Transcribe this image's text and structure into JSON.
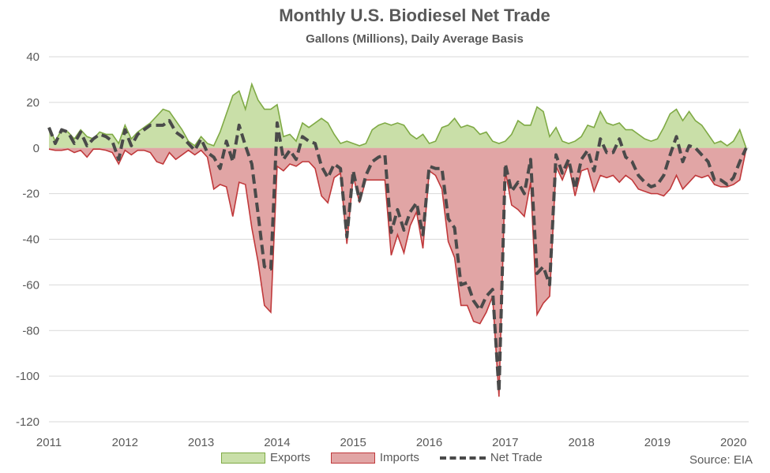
{
  "chart_data": {
    "type": "area",
    "title": "Monthly U.S. Biodiesel Net Trade",
    "subtitle": "Gallons (Millions), Daily Average Basis",
    "xlabel": "",
    "ylabel": "",
    "ylim": [
      -120,
      40
    ],
    "yticks": [
      40,
      20,
      0,
      -20,
      -40,
      -60,
      -80,
      -100,
      -120
    ],
    "xlim": [
      2011,
      2020.2
    ],
    "xticks": [
      "2011",
      "2012",
      "2013",
      "2014",
      "2015",
      "2016",
      "2017",
      "2018",
      "2019",
      "2020"
    ],
    "grid": "horizontal",
    "legend": "bottom",
    "source": "Source: EIA",
    "colors": {
      "exports_fill": "#c9dfa8",
      "exports_line": "#7faa45",
      "imports_fill": "#e1a5a5",
      "imports_line": "#c0393b",
      "net_line": "#4a4a4a",
      "grid": "#d9d9d9"
    },
    "series": [
      {
        "name": "Exports",
        "style": "area",
        "x": [
          2011.0,
          2011.083,
          2011.167,
          2011.25,
          2011.333,
          2011.417,
          2011.5,
          2011.583,
          2011.667,
          2011.75,
          2011.833,
          2011.917,
          2012.0,
          2012.083,
          2012.167,
          2012.25,
          2012.333,
          2012.417,
          2012.5,
          2012.583,
          2012.667,
          2012.75,
          2012.833,
          2012.917,
          2013.0,
          2013.083,
          2013.167,
          2013.25,
          2013.333,
          2013.417,
          2013.5,
          2013.583,
          2013.667,
          2013.75,
          2013.833,
          2013.917,
          2014.0,
          2014.083,
          2014.167,
          2014.25,
          2014.333,
          2014.417,
          2014.5,
          2014.583,
          2014.667,
          2014.75,
          2014.833,
          2014.917,
          2015.0,
          2015.083,
          2015.167,
          2015.25,
          2015.333,
          2015.417,
          2015.5,
          2015.583,
          2015.667,
          2015.75,
          2015.833,
          2015.917,
          2016.0,
          2016.083,
          2016.167,
          2016.25,
          2016.333,
          2016.417,
          2016.5,
          2016.583,
          2016.667,
          2016.75,
          2016.833,
          2016.917,
          2017.0,
          2017.083,
          2017.167,
          2017.25,
          2017.333,
          2017.417,
          2017.5,
          2017.583,
          2017.667,
          2017.75,
          2017.833,
          2017.917,
          2018.0,
          2018.083,
          2018.167,
          2018.25,
          2018.333,
          2018.417,
          2018.5,
          2018.583,
          2018.667,
          2018.75,
          2018.833,
          2018.917,
          2019.0,
          2019.083,
          2019.167,
          2019.25,
          2019.333,
          2019.417,
          2019.5,
          2019.583,
          2019.667,
          2019.75,
          2019.833,
          2019.917,
          2020.0,
          2020.083,
          2020.167
        ],
        "values": [
          9,
          3,
          8,
          7,
          4,
          8,
          5,
          4,
          7,
          6,
          6,
          2,
          10,
          4,
          7,
          9,
          11,
          14,
          17,
          16,
          12,
          8,
          3,
          1,
          5,
          2,
          1,
          7,
          15,
          23,
          25,
          17,
          28,
          21,
          17,
          17,
          19,
          5,
          6,
          3,
          11,
          9,
          11,
          13,
          11,
          6,
          2,
          3,
          2,
          1,
          2,
          8,
          10,
          11,
          10,
          11,
          10,
          6,
          4,
          6,
          2,
          3,
          9,
          10,
          13,
          9,
          10,
          9,
          6,
          7,
          3,
          2,
          3,
          6,
          12,
          10,
          10,
          18,
          16,
          5,
          9,
          3,
          2,
          3,
          5,
          10,
          9,
          16,
          11,
          10,
          11,
          8,
          8,
          6,
          4,
          3,
          4,
          9,
          15,
          17,
          12,
          16,
          12,
          10,
          6,
          2,
          3,
          1,
          3,
          8,
          0
        ]
      },
      {
        "name": "Imports",
        "style": "area",
        "x": [
          2011.0,
          2011.083,
          2011.167,
          2011.25,
          2011.333,
          2011.417,
          2011.5,
          2011.583,
          2011.667,
          2011.75,
          2011.833,
          2011.917,
          2012.0,
          2012.083,
          2012.167,
          2012.25,
          2012.333,
          2012.417,
          2012.5,
          2012.583,
          2012.667,
          2012.75,
          2012.833,
          2012.917,
          2013.0,
          2013.083,
          2013.167,
          2013.25,
          2013.333,
          2013.417,
          2013.5,
          2013.583,
          2013.667,
          2013.75,
          2013.833,
          2013.917,
          2014.0,
          2014.083,
          2014.167,
          2014.25,
          2014.333,
          2014.417,
          2014.5,
          2014.583,
          2014.667,
          2014.75,
          2014.833,
          2014.917,
          2015.0,
          2015.083,
          2015.167,
          2015.25,
          2015.333,
          2015.417,
          2015.5,
          2015.583,
          2015.667,
          2015.75,
          2015.833,
          2015.917,
          2016.0,
          2016.083,
          2016.167,
          2016.25,
          2016.333,
          2016.417,
          2016.5,
          2016.583,
          2016.667,
          2016.75,
          2016.833,
          2016.917,
          2017.0,
          2017.083,
          2017.167,
          2017.25,
          2017.333,
          2017.417,
          2017.5,
          2017.583,
          2017.667,
          2017.75,
          2017.833,
          2017.917,
          2018.0,
          2018.083,
          2018.167,
          2018.25,
          2018.333,
          2018.417,
          2018.5,
          2018.583,
          2018.667,
          2018.75,
          2018.833,
          2018.917,
          2019.0,
          2019.083,
          2019.167,
          2019.25,
          2019.333,
          2019.417,
          2019.5,
          2019.583,
          2019.667,
          2019.75,
          2019.833,
          2019.917,
          2020.0,
          2020.083,
          2020.167
        ],
        "values": [
          -0.5,
          -1,
          -1,
          -0.5,
          -2,
          -1,
          -4,
          -0.5,
          -0.5,
          -1,
          -2,
          -7,
          -1,
          -3,
          -1,
          -1,
          -2,
          -6,
          -7,
          -2,
          -5,
          -3,
          -1,
          -3,
          -1,
          -4,
          -18,
          -16,
          -17,
          -30,
          -15,
          -16,
          -35,
          -50,
          -69,
          -72,
          -8,
          -10,
          -7,
          -8,
          -6,
          -6,
          -9,
          -21,
          -24,
          -13,
          -11,
          -42,
          -12,
          -24,
          -14,
          -14,
          -14,
          -14,
          -47,
          -38,
          -46,
          -34,
          -28,
          -44,
          -10,
          -12,
          -18,
          -41,
          -48,
          -69,
          -69,
          -76,
          -77,
          -72,
          -65,
          -109,
          -10,
          -25,
          -27,
          -30,
          -15,
          -73,
          -68,
          -65,
          -8,
          -14,
          -7,
          -21,
          -10,
          -9,
          -19,
          -12,
          -13,
          -12,
          -15,
          -12,
          -14,
          -18,
          -19,
          -20,
          -20,
          -21,
          -18,
          -12,
          -18,
          -15,
          -12,
          -13,
          -12,
          -16,
          -17,
          -17,
          -16,
          -14,
          -0.5
        ]
      },
      {
        "name": "Net Trade",
        "style": "dashed-line",
        "x": [
          2011.0,
          2011.083,
          2011.167,
          2011.25,
          2011.333,
          2011.417,
          2011.5,
          2011.583,
          2011.667,
          2011.75,
          2011.833,
          2011.917,
          2012.0,
          2012.083,
          2012.167,
          2012.25,
          2012.333,
          2012.417,
          2012.5,
          2012.583,
          2012.667,
          2012.75,
          2012.833,
          2012.917,
          2013.0,
          2013.083,
          2013.167,
          2013.25,
          2013.333,
          2013.417,
          2013.5,
          2013.583,
          2013.667,
          2013.75,
          2013.833,
          2013.917,
          2014.0,
          2014.083,
          2014.167,
          2014.25,
          2014.333,
          2014.417,
          2014.5,
          2014.583,
          2014.667,
          2014.75,
          2014.833,
          2014.917,
          2015.0,
          2015.083,
          2015.167,
          2015.25,
          2015.333,
          2015.417,
          2015.5,
          2015.583,
          2015.667,
          2015.75,
          2015.833,
          2015.917,
          2016.0,
          2016.083,
          2016.167,
          2016.25,
          2016.333,
          2016.417,
          2016.5,
          2016.583,
          2016.667,
          2016.75,
          2016.833,
          2016.917,
          2017.0,
          2017.083,
          2017.167,
          2017.25,
          2017.333,
          2017.417,
          2017.5,
          2017.583,
          2017.667,
          2017.75,
          2017.833,
          2017.917,
          2018.0,
          2018.083,
          2018.167,
          2018.25,
          2018.333,
          2018.417,
          2018.5,
          2018.583,
          2018.667,
          2018.75,
          2018.833,
          2018.917,
          2019.0,
          2019.083,
          2019.167,
          2019.25,
          2019.333,
          2019.417,
          2019.5,
          2019.583,
          2019.667,
          2019.75,
          2019.833,
          2019.917,
          2020.0,
          2020.083,
          2020.167
        ],
        "values": [
          9,
          2,
          8,
          7,
          2,
          7,
          1,
          4,
          6,
          5,
          3,
          -5,
          8,
          1,
          6,
          8,
          10,
          10,
          10,
          12,
          7,
          5,
          2,
          -1,
          4,
          -2,
          -4,
          -9,
          3,
          -6,
          10,
          1,
          -7,
          -29,
          -52,
          -53,
          11,
          -5,
          -1,
          -5,
          5,
          3,
          2,
          -8,
          -13,
          -7,
          -9,
          -39,
          -10,
          -23,
          -12,
          -6,
          -4,
          -3,
          -37,
          -27,
          -36,
          -28,
          -24,
          -38,
          -8,
          -9,
          -9,
          -31,
          -35,
          -60,
          -59,
          -67,
          -71,
          -65,
          -62,
          -107,
          -7,
          -19,
          -15,
          -20,
          -5,
          -55,
          -52,
          -60,
          -3,
          -11,
          -5,
          -18,
          -5,
          -1,
          -10,
          4,
          -2,
          -2,
          4,
          -4,
          -6,
          -12,
          -15,
          -17,
          -16,
          -12,
          -3,
          5,
          -6,
          1,
          0,
          -3,
          -6,
          -14,
          -14,
          -16,
          -13,
          -6,
          0
        ]
      }
    ]
  }
}
